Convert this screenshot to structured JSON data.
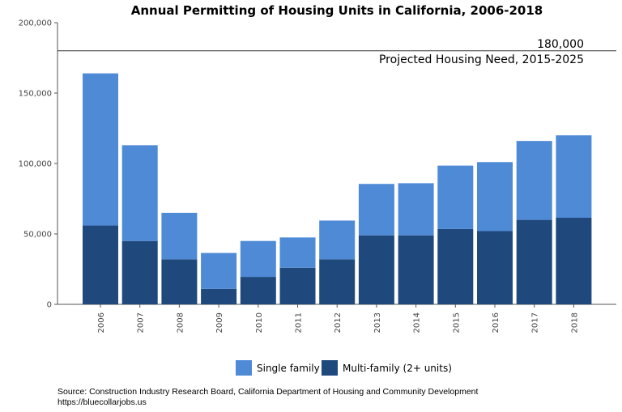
{
  "chart_data": {
    "type": "bar",
    "stacked": true,
    "title": "Annual Permitting of Housing Units in California, 2006-2018",
    "categories": [
      "2006",
      "2007",
      "2008",
      "2009",
      "2010",
      "2011",
      "2012",
      "2013",
      "2014",
      "2015",
      "2016",
      "2017",
      "2018"
    ],
    "series": [
      {
        "name": "Multi-family (2+ units)",
        "color": "#1f497d",
        "values": [
          56000,
          45000,
          32000,
          11000,
          19500,
          26000,
          32000,
          49000,
          49000,
          53500,
          52000,
          60000,
          61500
        ]
      },
      {
        "name": "Single family",
        "color": "#4f8ad6",
        "values": [
          108000,
          68000,
          33000,
          25500,
          25500,
          21500,
          27500,
          36500,
          37000,
          45000,
          49000,
          56000,
          58500
        ]
      }
    ],
    "ylim": [
      0,
      200000
    ],
    "yticks": [
      0,
      50000,
      100000,
      150000,
      200000
    ],
    "ytick_labels": [
      "0",
      "50,000",
      "100,000",
      "150,000",
      "200,000"
    ],
    "reference_line": {
      "value": 180000,
      "value_label": "180,000",
      "label": "Projected Housing Need, 2015-2025"
    },
    "legend": [
      "Single family",
      "Multi-family (2+ units)"
    ],
    "legend_position": "bottom",
    "grid": false
  },
  "footer": {
    "source": "Source: Construction Industry Research Board, California Department of Housing and Community Development",
    "url": "https://bluecollarjobs.us"
  }
}
